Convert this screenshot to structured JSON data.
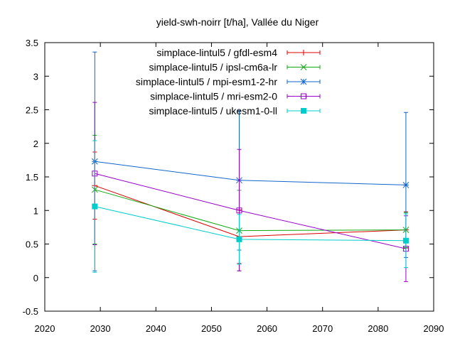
{
  "chart_data": {
    "type": "line",
    "title": "yield-swh-noirr [t/ha], Vallée du Niger",
    "xlabel": "",
    "ylabel": "",
    "xlim": [
      2020,
      2090
    ],
    "ylim": [
      -0.5,
      3.5
    ],
    "xticks": [
      2020,
      2030,
      2040,
      2050,
      2060,
      2070,
      2080,
      2090
    ],
    "yticks": [
      -0.5,
      0,
      0.5,
      1,
      1.5,
      2,
      2.5,
      3,
      3.5
    ],
    "xtick_labels": [
      "2020",
      "2030",
      "2040",
      "2050",
      "2060",
      "2070",
      "2080",
      "2090"
    ],
    "ytick_labels": [
      "-0.5",
      "0",
      "0.5",
      "1",
      "1.5",
      "2",
      "2.5",
      "3",
      "3.5"
    ],
    "grid": false,
    "legend_position": "top-right",
    "x": [
      2029,
      2055,
      2085
    ],
    "series": [
      {
        "name": "simplace-lintul5 / gfdl-esm4",
        "color": "#dd0000",
        "marker": "plus",
        "values": [
          1.37,
          0.61,
          0.71
        ],
        "err_low": [
          0.87,
          0.21,
          0.44
        ],
        "err_high": [
          1.87,
          1.01,
          0.98
        ]
      },
      {
        "name": "simplace-lintul5 / ipsl-cm6a-lr",
        "color": "#11aa11",
        "marker": "cross",
        "values": [
          1.31,
          0.7,
          0.71
        ],
        "err_low": [
          0.5,
          0.1,
          0.45
        ],
        "err_high": [
          2.12,
          1.3,
          0.97
        ]
      },
      {
        "name": "simplace-lintul5 / mpi-esm1-2-hr",
        "color": "#1166cc",
        "marker": "star",
        "values": [
          1.73,
          1.45,
          1.38
        ],
        "err_low": [
          0.1,
          0.41,
          0.3
        ],
        "err_high": [
          3.36,
          2.49,
          2.46
        ]
      },
      {
        "name": "simplace-lintul5 / mri-esm2-0",
        "color": "#9900cc",
        "marker": "square-open",
        "values": [
          1.55,
          1.0,
          0.43
        ],
        "err_low": [
          0.49,
          0.1,
          -0.06
        ],
        "err_high": [
          2.61,
          1.91,
          0.92
        ]
      },
      {
        "name": "simplace-lintul5 / ukesm1-0-ll",
        "color": "#00cccc",
        "marker": "square-filled",
        "values": [
          1.06,
          0.57,
          0.55
        ],
        "err_low": [
          0.08,
          0.2,
          0.15
        ],
        "err_high": [
          2.04,
          0.94,
          0.95
        ]
      }
    ]
  }
}
